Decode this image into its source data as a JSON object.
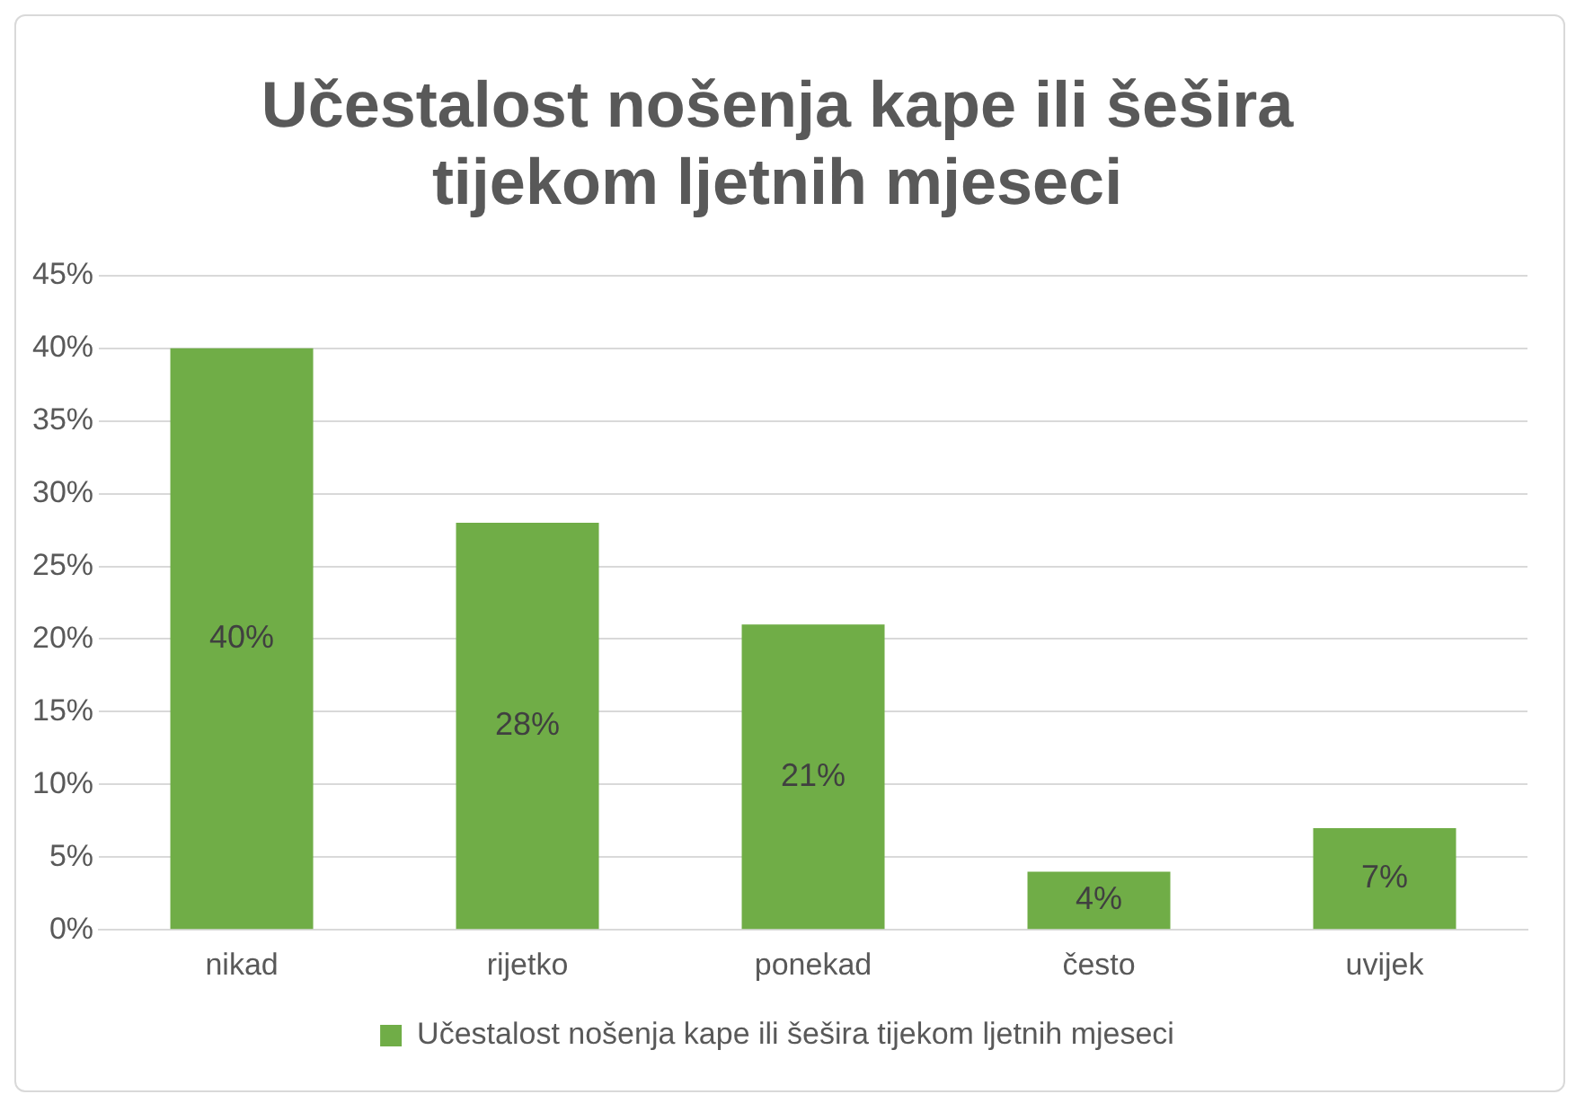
{
  "chart_data": {
    "type": "bar",
    "title": "Učestalost nošenja kape ili šešira tijekom ljetnih mjeseci",
    "categories": [
      "nikad",
      "rijetko",
      "ponekad",
      "često",
      "uvijek"
    ],
    "series": [
      {
        "name": "Učestalost nošenja kape ili šešira tijekom ljetnih mjeseci",
        "color": "#70ad47",
        "values": [
          40,
          28,
          21,
          4,
          7
        ],
        "value_labels": [
          "40%",
          "28%",
          "21%",
          "4%",
          "7%"
        ]
      }
    ],
    "ylim": [
      0,
      45
    ],
    "yticks": [
      {
        "value": 0,
        "label": "0%"
      },
      {
        "value": 5,
        "label": "5%"
      },
      {
        "value": 10,
        "label": "10%"
      },
      {
        "value": 15,
        "label": "15%"
      },
      {
        "value": 20,
        "label": "20%"
      },
      {
        "value": 25,
        "label": "25%"
      },
      {
        "value": 30,
        "label": "30%"
      },
      {
        "value": 35,
        "label": "35%"
      },
      {
        "value": 40,
        "label": "40%"
      },
      {
        "value": 45,
        "label": "45%"
      }
    ],
    "grid": "y",
    "legend": "bottom"
  }
}
